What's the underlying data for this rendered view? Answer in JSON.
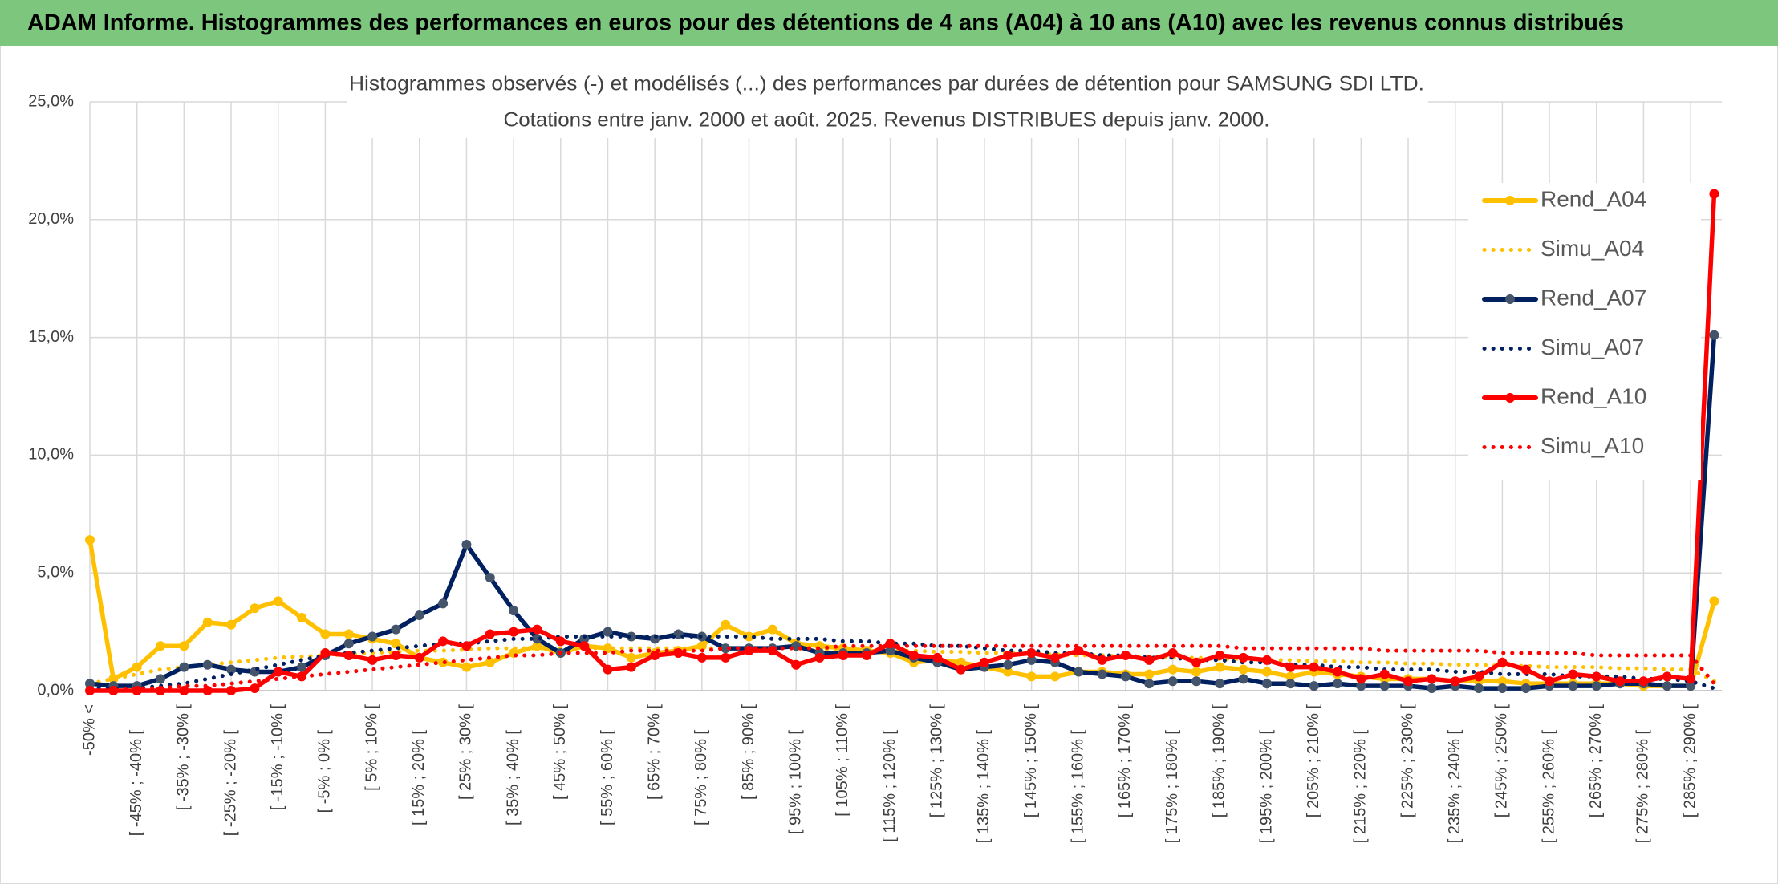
{
  "header": {
    "title": "ADAM Informe. Histogrammes des performances en euros pour des détentions de 4 ans (A04) à 10 ans (A10) avec les revenus connus distribués"
  },
  "chart_data": {
    "type": "line",
    "title": "Histogrammes observés (-) et modélisés (...) des performances par durées de détention pour SAMSUNG SDI LTD.",
    "subtitle": "Cotations entre janv. 2000 et août. 2025. Revenus DISTRIBUES depuis janv. 2000.",
    "categories": [
      "-50% <",
      null,
      "[ -45% ; -40% [",
      null,
      "[ -35% ; -30% [",
      null,
      "[ -25% ; -20% [",
      null,
      "[ -15% ; -10% [",
      null,
      "[ -5% ; 0% [",
      null,
      "[ 5% ; 10% [",
      null,
      "[ 15% ; 20% [",
      null,
      "[ 25% ; 30% [",
      null,
      "[ 35% ; 40% [",
      null,
      "[ 45% ; 50% [",
      null,
      "[ 55% ; 60% [",
      null,
      "[ 65% ; 70% [",
      null,
      "[ 75% ; 80% [",
      null,
      "[ 85% ; 90% [",
      null,
      "[ 95% ; 100% [",
      null,
      "[ 105% ; 110% [",
      null,
      "[ 115% ; 120% [",
      null,
      "[ 125% ; 130% [",
      null,
      "[ 135% ; 140% [",
      null,
      "[ 145% ; 150% [",
      null,
      "[ 155% ; 160% [",
      null,
      "[ 165% ; 170% [",
      null,
      "[ 175% ; 180% [",
      null,
      "[ 185% ; 190% [",
      null,
      "[ 195% ; 200% [",
      null,
      "[ 205% ; 210% [",
      null,
      "[ 215% ; 220% [",
      null,
      "[ 225% ; 230% [",
      null,
      "[ 235% ; 240% [",
      null,
      "[ 245% ; 250% [",
      null,
      "[ 255% ; 260% [",
      null,
      "[ 265% ; 270% [",
      null,
      "[ 275% ; 280% [",
      null,
      "[ 285% ; 290% [",
      null
    ],
    "ylim": [
      0,
      25
    ],
    "yticks": [
      {
        "value": 0,
        "label": "0,0%"
      },
      {
        "value": 5,
        "label": "5,0%"
      },
      {
        "value": 10,
        "label": "10,0%"
      },
      {
        "value": 15,
        "label": "15,0%"
      },
      {
        "value": 20,
        "label": "20,0%"
      },
      {
        "value": 25,
        "label": "25,0%"
      }
    ],
    "grid": true,
    "legend": "right",
    "series": [
      {
        "name": "Rend_A04",
        "color": "#FFC000",
        "marker_color": "#FFC000",
        "style": "solid",
        "markers": true,
        "values": [
          6.4,
          0.5,
          1.0,
          1.9,
          1.9,
          2.9,
          2.8,
          3.5,
          3.8,
          3.1,
          2.4,
          2.4,
          2.2,
          2.0,
          1.4,
          1.2,
          1.0,
          1.2,
          1.6,
          1.9,
          1.6,
          1.9,
          1.8,
          1.4,
          1.6,
          1.7,
          1.9,
          2.8,
          2.3,
          2.6,
          2.0,
          1.9,
          1.8,
          1.7,
          1.6,
          1.2,
          1.3,
          1.2,
          1.0,
          0.8,
          0.6,
          0.6,
          0.8,
          0.8,
          0.7,
          0.7,
          0.9,
          0.8,
          1.0,
          0.9,
          0.8,
          0.6,
          0.8,
          0.7,
          0.6,
          0.5,
          0.5,
          0.5,
          0.4,
          0.4,
          0.4,
          0.3,
          0.3,
          0.3,
          0.3,
          0.3,
          0.2,
          0.2,
          0.2,
          3.8
        ]
      },
      {
        "name": "Simu_A04",
        "color": "#FFC000",
        "style": "dotted",
        "markers": false,
        "values": [
          0.3,
          0.5,
          0.7,
          0.9,
          1.0,
          1.1,
          1.2,
          1.3,
          1.4,
          1.45,
          1.5,
          1.55,
          1.6,
          1.65,
          1.7,
          1.7,
          1.75,
          1.8,
          1.8,
          1.8,
          1.8,
          1.8,
          1.8,
          1.8,
          1.8,
          1.8,
          1.8,
          1.8,
          1.8,
          1.8,
          1.8,
          1.75,
          1.75,
          1.7,
          1.7,
          1.7,
          1.65,
          1.65,
          1.6,
          1.6,
          1.55,
          1.55,
          1.5,
          1.5,
          1.45,
          1.45,
          1.4,
          1.4,
          1.35,
          1.35,
          1.3,
          1.3,
          1.25,
          1.25,
          1.2,
          1.2,
          1.15,
          1.15,
          1.1,
          1.1,
          1.05,
          1.05,
          1.0,
          1.0,
          1.0,
          0.95,
          0.95,
          0.9,
          0.9,
          0.4
        ]
      },
      {
        "name": "Rend_A07",
        "color": "#002060",
        "marker_color": "#44546A",
        "style": "solid",
        "markers": true,
        "values": [
          0.3,
          0.2,
          0.2,
          0.5,
          1.0,
          1.1,
          0.9,
          0.8,
          0.8,
          1.0,
          1.5,
          2.0,
          2.3,
          2.6,
          3.2,
          3.7,
          6.2,
          4.8,
          3.4,
          2.2,
          1.6,
          2.2,
          2.5,
          2.3,
          2.2,
          2.4,
          2.3,
          1.8,
          1.8,
          1.8,
          1.9,
          1.6,
          1.6,
          1.6,
          1.7,
          1.4,
          1.2,
          0.9,
          1.0,
          1.1,
          1.3,
          1.2,
          0.8,
          0.7,
          0.6,
          0.3,
          0.4,
          0.4,
          0.3,
          0.5,
          0.3,
          0.3,
          0.2,
          0.3,
          0.2,
          0.2,
          0.2,
          0.1,
          0.2,
          0.1,
          0.1,
          0.1,
          0.2,
          0.2,
          0.2,
          0.3,
          0.3,
          0.2,
          0.2,
          15.1
        ]
      },
      {
        "name": "Simu_A07",
        "color": "#002060",
        "style": "dotted",
        "markers": false,
        "values": [
          0.1,
          0.1,
          0.1,
          0.2,
          0.3,
          0.5,
          0.7,
          0.9,
          1.1,
          1.3,
          1.5,
          1.6,
          1.7,
          1.8,
          1.9,
          2.0,
          2.0,
          2.1,
          2.2,
          2.2,
          2.3,
          2.3,
          2.3,
          2.3,
          2.3,
          2.3,
          2.3,
          2.3,
          2.3,
          2.2,
          2.2,
          2.2,
          2.1,
          2.1,
          2.0,
          2.0,
          1.9,
          1.9,
          1.8,
          1.7,
          1.7,
          1.6,
          1.6,
          1.5,
          1.5,
          1.4,
          1.4,
          1.3,
          1.3,
          1.2,
          1.2,
          1.1,
          1.1,
          1.0,
          1.0,
          0.9,
          0.9,
          0.9,
          0.8,
          0.8,
          0.7,
          0.7,
          0.7,
          0.6,
          0.6,
          0.6,
          0.5,
          0.5,
          0.4,
          0.1
        ]
      },
      {
        "name": "Rend_A10",
        "color": "#FF0000",
        "marker_color": "#FF0000",
        "style": "solid",
        "markers": true,
        "values": [
          0.0,
          0.0,
          0.0,
          0.0,
          0.0,
          0.0,
          0.0,
          0.1,
          0.8,
          0.6,
          1.6,
          1.5,
          1.3,
          1.5,
          1.4,
          2.1,
          1.9,
          2.4,
          2.5,
          2.6,
          2.1,
          1.9,
          0.9,
          1.0,
          1.5,
          1.6,
          1.4,
          1.4,
          1.7,
          1.7,
          1.1,
          1.4,
          1.5,
          1.5,
          2.0,
          1.5,
          1.4,
          0.9,
          1.2,
          1.5,
          1.6,
          1.4,
          1.7,
          1.3,
          1.5,
          1.3,
          1.6,
          1.2,
          1.5,
          1.4,
          1.3,
          1.0,
          1.0,
          0.8,
          0.5,
          0.7,
          0.4,
          0.5,
          0.4,
          0.6,
          1.2,
          0.9,
          0.4,
          0.7,
          0.6,
          0.4,
          0.4,
          0.6,
          0.5,
          21.1
        ]
      },
      {
        "name": "Simu_A10",
        "color": "#FF0000",
        "style": "dotted",
        "markers": false,
        "values": [
          0.0,
          0.0,
          0.1,
          0.1,
          0.2,
          0.2,
          0.3,
          0.4,
          0.5,
          0.6,
          0.7,
          0.8,
          0.9,
          1.0,
          1.1,
          1.2,
          1.3,
          1.4,
          1.5,
          1.5,
          1.6,
          1.6,
          1.6,
          1.7,
          1.7,
          1.7,
          1.7,
          1.8,
          1.8,
          1.8,
          1.8,
          1.8,
          1.9,
          1.9,
          1.9,
          1.9,
          1.9,
          1.9,
          1.9,
          1.9,
          1.9,
          1.9,
          1.9,
          1.9,
          1.9,
          1.9,
          1.9,
          1.9,
          1.9,
          1.8,
          1.8,
          1.8,
          1.8,
          1.8,
          1.8,
          1.7,
          1.7,
          1.7,
          1.7,
          1.7,
          1.6,
          1.6,
          1.6,
          1.6,
          1.5,
          1.5,
          1.5,
          1.5,
          1.5,
          0.3
        ]
      }
    ]
  }
}
